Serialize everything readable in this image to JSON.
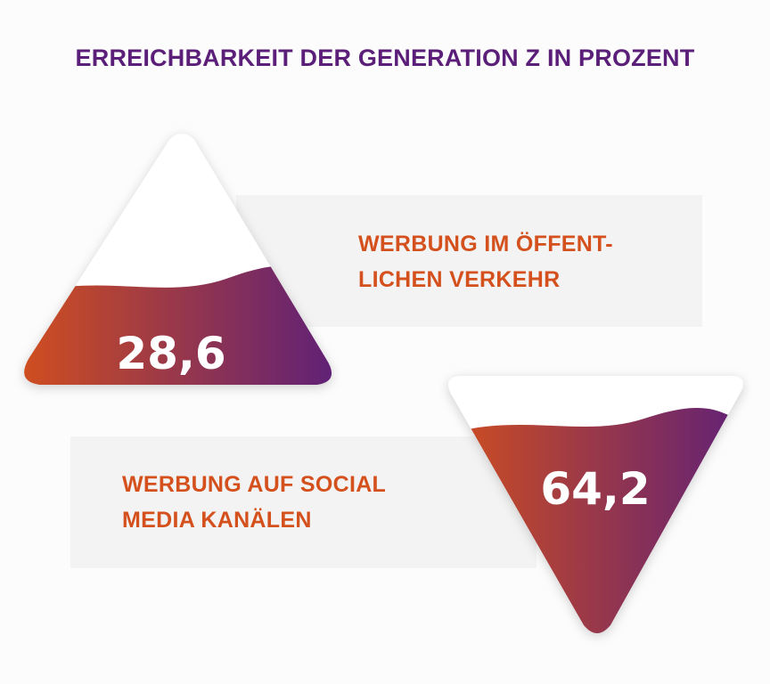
{
  "title": "ERREICHBARKEIT DER GENERATION Z IN PROZENT",
  "colors": {
    "title": "#5b1f7a",
    "label": "#d4501c",
    "panel": "#f3f3f3",
    "gradient_start": "#d4501c",
    "gradient_end": "#5b1f7a",
    "value": "#ffffff"
  },
  "chart_data": {
    "type": "bar",
    "title": "ERREICHBARKEIT DER GENERATION Z IN PROZENT",
    "unit": "%",
    "ylim": [
      0,
      100
    ],
    "items": [
      {
        "label_lines": [
          "WERBUNG IM ÖFFENT-",
          "LICHEN VERKEHR"
        ],
        "value": 28.6,
        "value_text": "28,6",
        "shape": "triangle-up"
      },
      {
        "label_lines": [
          "WERBUNG AUF SOCIAL",
          "MEDIA KANÄLEN"
        ],
        "value": 64.2,
        "value_text": "64,2",
        "shape": "triangle-down"
      }
    ]
  }
}
